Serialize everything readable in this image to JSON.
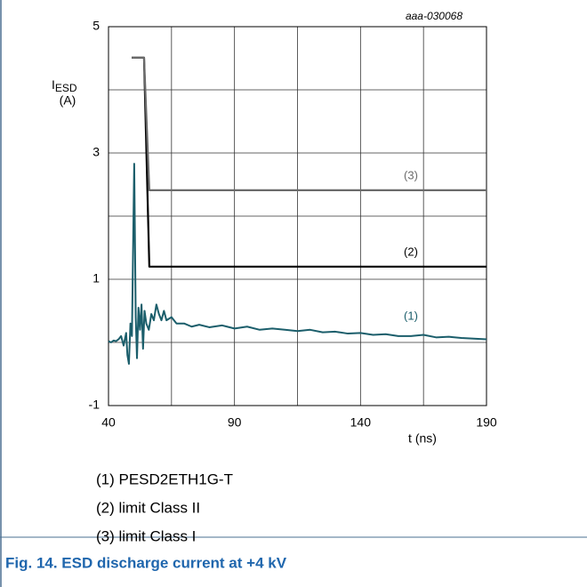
{
  "chart_data": {
    "type": "line",
    "code": "aaa-030068",
    "ylabel": "I",
    "ylabel_sub": "ESD",
    "ylabel_unit": "(A)",
    "xlabel": "t (ns)",
    "xlim": [
      40,
      190
    ],
    "xticks": [
      40,
      90,
      140,
      190
    ],
    "x_minor_ticks": [
      65,
      115,
      165
    ],
    "ylim": [
      -1,
      5
    ],
    "yticks": [
      -1,
      1,
      3,
      5
    ],
    "y_minor_ticks": [
      0,
      2,
      4
    ],
    "grid": true,
    "series": [
      {
        "name": "(1) PESD2ETH1G-T",
        "label": "(1)",
        "color": "#1b5e6b",
        "x": [
          40,
          41,
          42,
          43,
          44,
          45,
          46,
          47,
          47.5,
          48.1,
          48.7,
          49.3,
          50.2,
          50.8,
          51.3,
          51.9,
          52.5,
          53.1,
          53.7,
          54.3,
          55,
          56,
          57,
          58,
          59,
          60,
          61,
          62,
          63,
          65,
          67,
          70,
          73,
          76,
          80,
          85,
          90,
          95,
          100,
          105,
          110,
          115,
          120,
          125,
          130,
          135,
          140,
          145,
          150,
          155,
          160,
          165,
          170,
          175,
          180,
          185,
          190
        ],
        "values": [
          0.02,
          0.0,
          0.03,
          0.02,
          0.05,
          0.1,
          -0.05,
          0.15,
          -0.2,
          -0.34,
          0.3,
          0.1,
          2.83,
          0.4,
          -0.25,
          0.55,
          0.2,
          0.6,
          -0.1,
          0.5,
          0.3,
          0.2,
          0.45,
          0.35,
          0.6,
          0.45,
          0.35,
          0.5,
          0.35,
          0.4,
          0.3,
          0.3,
          0.25,
          0.28,
          0.24,
          0.27,
          0.22,
          0.25,
          0.2,
          0.22,
          0.2,
          0.18,
          0.2,
          0.16,
          0.17,
          0.14,
          0.15,
          0.12,
          0.13,
          0.1,
          0.1,
          0.12,
          0.08,
          0.09,
          0.07,
          0.06,
          0.05
        ]
      },
      {
        "name": "(2) limit Class II",
        "label": "(2)",
        "color": "#000000",
        "x": [
          49.2,
          54.1,
          56.2,
          190
        ],
        "values": [
          4.51,
          4.51,
          1.2,
          1.2
        ]
      },
      {
        "name": "(3) limit Class I",
        "label": "(3)",
        "color": "#6b6b6b",
        "x": [
          49.2,
          54.1,
          56.2,
          190
        ],
        "values": [
          4.51,
          4.51,
          2.41,
          2.41
        ]
      }
    ],
    "caption": "Fig. 14.  ESD discharge current at +4 kV"
  }
}
